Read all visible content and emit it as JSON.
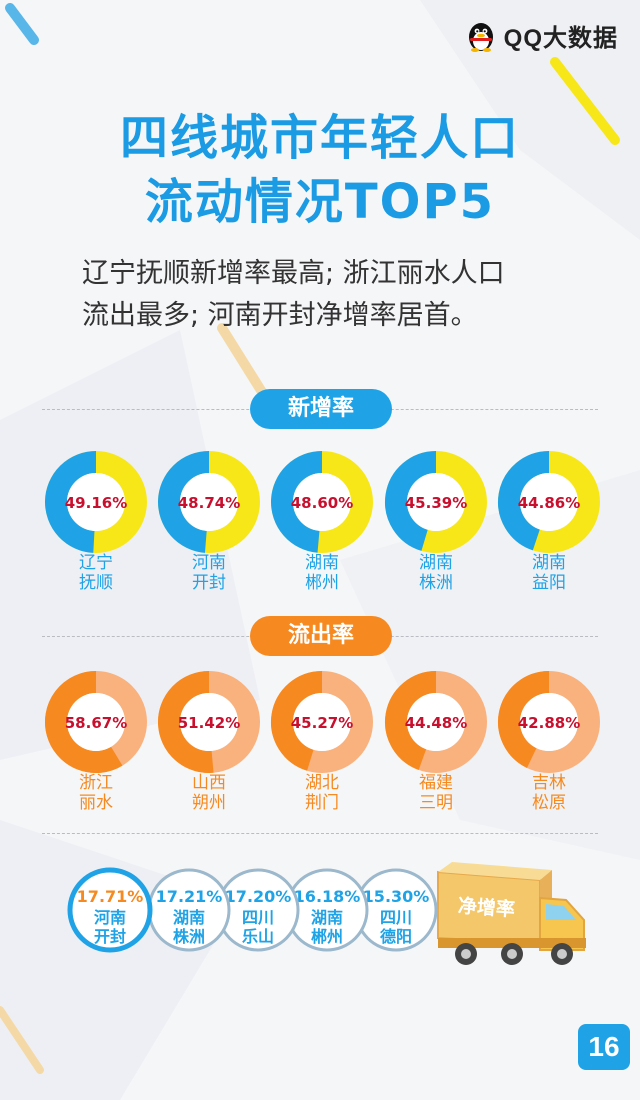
{
  "brand": {
    "name": "QQ大数据",
    "icon": "penguin-icon"
  },
  "title": {
    "line1": "四线城市年轻人口",
    "line2": "流动情况TOP5"
  },
  "subtitle": {
    "line1": "辽宁抚顺新增率最高; 浙江丽水人口",
    "line2": "流出最多; 河南开封净增率居首。"
  },
  "colors": {
    "blue": "#1fa3e6",
    "yellow": "#f7e719",
    "orange": "#f6891f",
    "peach": "#f9b17d",
    "value_red": "#c8102e",
    "ring_grey": "#9bb8cc"
  },
  "chart_data": [
    {
      "type": "pie",
      "title": "新增率",
      "categories": [
        "辽宁抚顺",
        "河南开封",
        "湖南郴州",
        "湖南株洲",
        "湖南益阳"
      ],
      "cities": [
        {
          "line1": "辽宁",
          "line2": "抚顺"
        },
        {
          "line1": "河南",
          "line2": "开封"
        },
        {
          "line1": "湖南",
          "line2": "郴州"
        },
        {
          "line1": "湖南",
          "line2": "株洲"
        },
        {
          "line1": "湖南",
          "line2": "益阳"
        }
      ],
      "values": [
        49.16,
        48.74,
        48.6,
        45.39,
        44.86
      ],
      "labels": [
        "49.16%",
        "48.74%",
        "48.60%",
        "45.39%",
        "44.86%"
      ]
    },
    {
      "type": "pie",
      "title": "流出率",
      "categories": [
        "浙江丽水",
        "山西朔州",
        "湖北荆门",
        "福建三明",
        "吉林松原"
      ],
      "cities": [
        {
          "line1": "浙江",
          "line2": "丽水"
        },
        {
          "line1": "山西",
          "line2": "朔州"
        },
        {
          "line1": "湖北",
          "line2": "荆门"
        },
        {
          "line1": "福建",
          "line2": "三明"
        },
        {
          "line1": "吉林",
          "line2": "松原"
        }
      ],
      "values": [
        58.67,
        51.42,
        45.27,
        44.48,
        42.88
      ],
      "labels": [
        "58.67%",
        "51.42%",
        "45.27%",
        "44.48%",
        "42.88%"
      ]
    },
    {
      "type": "table",
      "title": "净增率",
      "categories": [
        "河南开封",
        "湖南株洲",
        "四川乐山",
        "湖南郴州",
        "四川德阳"
      ],
      "cities": [
        {
          "line1": "河南",
          "line2": "开封"
        },
        {
          "line1": "湖南",
          "line2": "株洲"
        },
        {
          "line1": "四川",
          "line2": "乐山"
        },
        {
          "line1": "湖南",
          "line2": "郴州"
        },
        {
          "line1": "四川",
          "line2": "德阳"
        }
      ],
      "values": [
        17.71,
        17.21,
        17.2,
        16.18,
        15.3
      ],
      "labels": [
        "17.71%",
        "17.21%",
        "17.20%",
        "16.18%",
        "15.30%"
      ]
    }
  ],
  "page_number": "16"
}
